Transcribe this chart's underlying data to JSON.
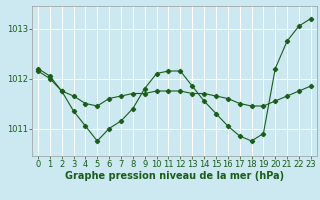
{
  "xlabel": "Graphe pression niveau de la mer (hPa)",
  "background_color": "#cce8f0",
  "grid_color": "#ffffff",
  "line_color": "#1a5c1a",
  "yticks": [
    1011,
    1012,
    1013
  ],
  "ylim": [
    1010.45,
    1013.45
  ],
  "xlim": [
    -0.5,
    23.5
  ],
  "xticks": [
    0,
    1,
    2,
    3,
    4,
    5,
    6,
    7,
    8,
    9,
    10,
    11,
    12,
    13,
    14,
    15,
    16,
    17,
    18,
    19,
    20,
    21,
    22,
    23
  ],
  "series1_x": [
    0,
    1,
    2,
    3,
    4,
    5,
    6,
    7,
    8,
    9,
    10,
    11,
    12,
    13,
    14,
    15,
    16,
    17,
    18,
    19,
    20,
    21,
    22,
    23
  ],
  "series1_y": [
    1012.2,
    1012.05,
    1011.75,
    1011.65,
    1011.5,
    1011.45,
    1011.6,
    1011.65,
    1011.7,
    1011.7,
    1011.75,
    1011.75,
    1011.75,
    1011.7,
    1011.7,
    1011.65,
    1011.6,
    1011.5,
    1011.45,
    1011.45,
    1011.55,
    1011.65,
    1011.75,
    1011.85
  ],
  "series2_x": [
    0,
    1,
    2,
    3,
    4,
    5,
    6,
    7,
    8,
    9,
    10,
    11,
    12,
    13,
    14,
    15,
    16,
    17,
    18,
    19,
    20,
    21,
    22,
    23
  ],
  "series2_y": [
    1012.15,
    1012.0,
    1011.75,
    1011.35,
    1011.05,
    1010.75,
    1011.0,
    1011.15,
    1011.4,
    1011.8,
    1012.1,
    1012.15,
    1012.15,
    1011.85,
    1011.55,
    1011.3,
    1011.05,
    1010.85,
    1010.75,
    1010.9,
    1012.2,
    1012.75,
    1013.05,
    1013.2
  ],
  "xlabel_fontsize": 7.0,
  "tick_fontsize": 6.0,
  "figsize": [
    3.2,
    2.0
  ],
  "dpi": 100
}
